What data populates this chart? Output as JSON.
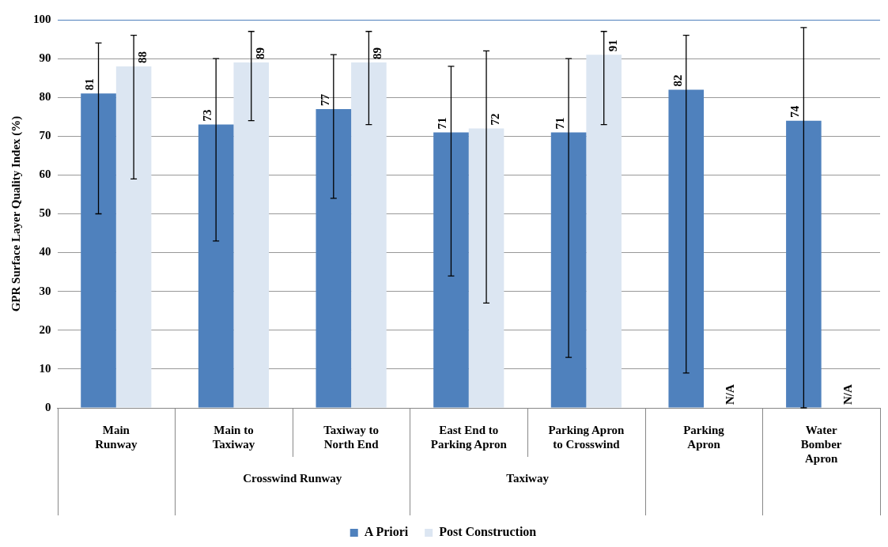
{
  "chart_data": {
    "type": "bar",
    "ylabel": "GPR Surface Layer Quality Index (%)",
    "categories": [
      "Main\nRunway",
      "Main to\nTaxiway",
      "Taxiway to\nNorth End",
      "East End to\nParking Apron",
      "Parking Apron\nto Crosswind",
      "Parking\nApron",
      "Water\nBomber\nApron"
    ],
    "series": [
      {
        "name": "A Priori",
        "color": "#4f81bd",
        "values": [
          81,
          73,
          77,
          71,
          71,
          82,
          74
        ],
        "errors": [
          [
            50,
            94
          ],
          [
            43,
            90
          ],
          [
            54,
            91
          ],
          [
            34,
            88
          ],
          [
            13,
            90
          ],
          [
            9,
            96
          ],
          [
            0,
            98
          ]
        ],
        "value_labels": [
          "81",
          "73",
          "77",
          "71",
          "71",
          "82",
          "74"
        ]
      },
      {
        "name": "Post Construction",
        "color": "#dce6f2",
        "values": [
          88,
          89,
          89,
          72,
          91,
          null,
          null
        ],
        "errors": [
          [
            59,
            96
          ],
          [
            74,
            97
          ],
          [
            73,
            97
          ],
          [
            27,
            92
          ],
          [
            73,
            97
          ],
          null,
          null
        ],
        "value_labels": [
          "88",
          "89",
          "89",
          "72",
          "91",
          "N/A",
          "N/A"
        ]
      }
    ],
    "annotations": [
      "Crosswind Runway",
      "Taxiway"
    ],
    "ylim": [
      0,
      100
    ],
    "yticks": [
      0,
      10,
      20,
      30,
      40,
      50,
      60,
      70,
      80,
      90,
      100
    ],
    "grid": "y",
    "legend": "bottom"
  }
}
